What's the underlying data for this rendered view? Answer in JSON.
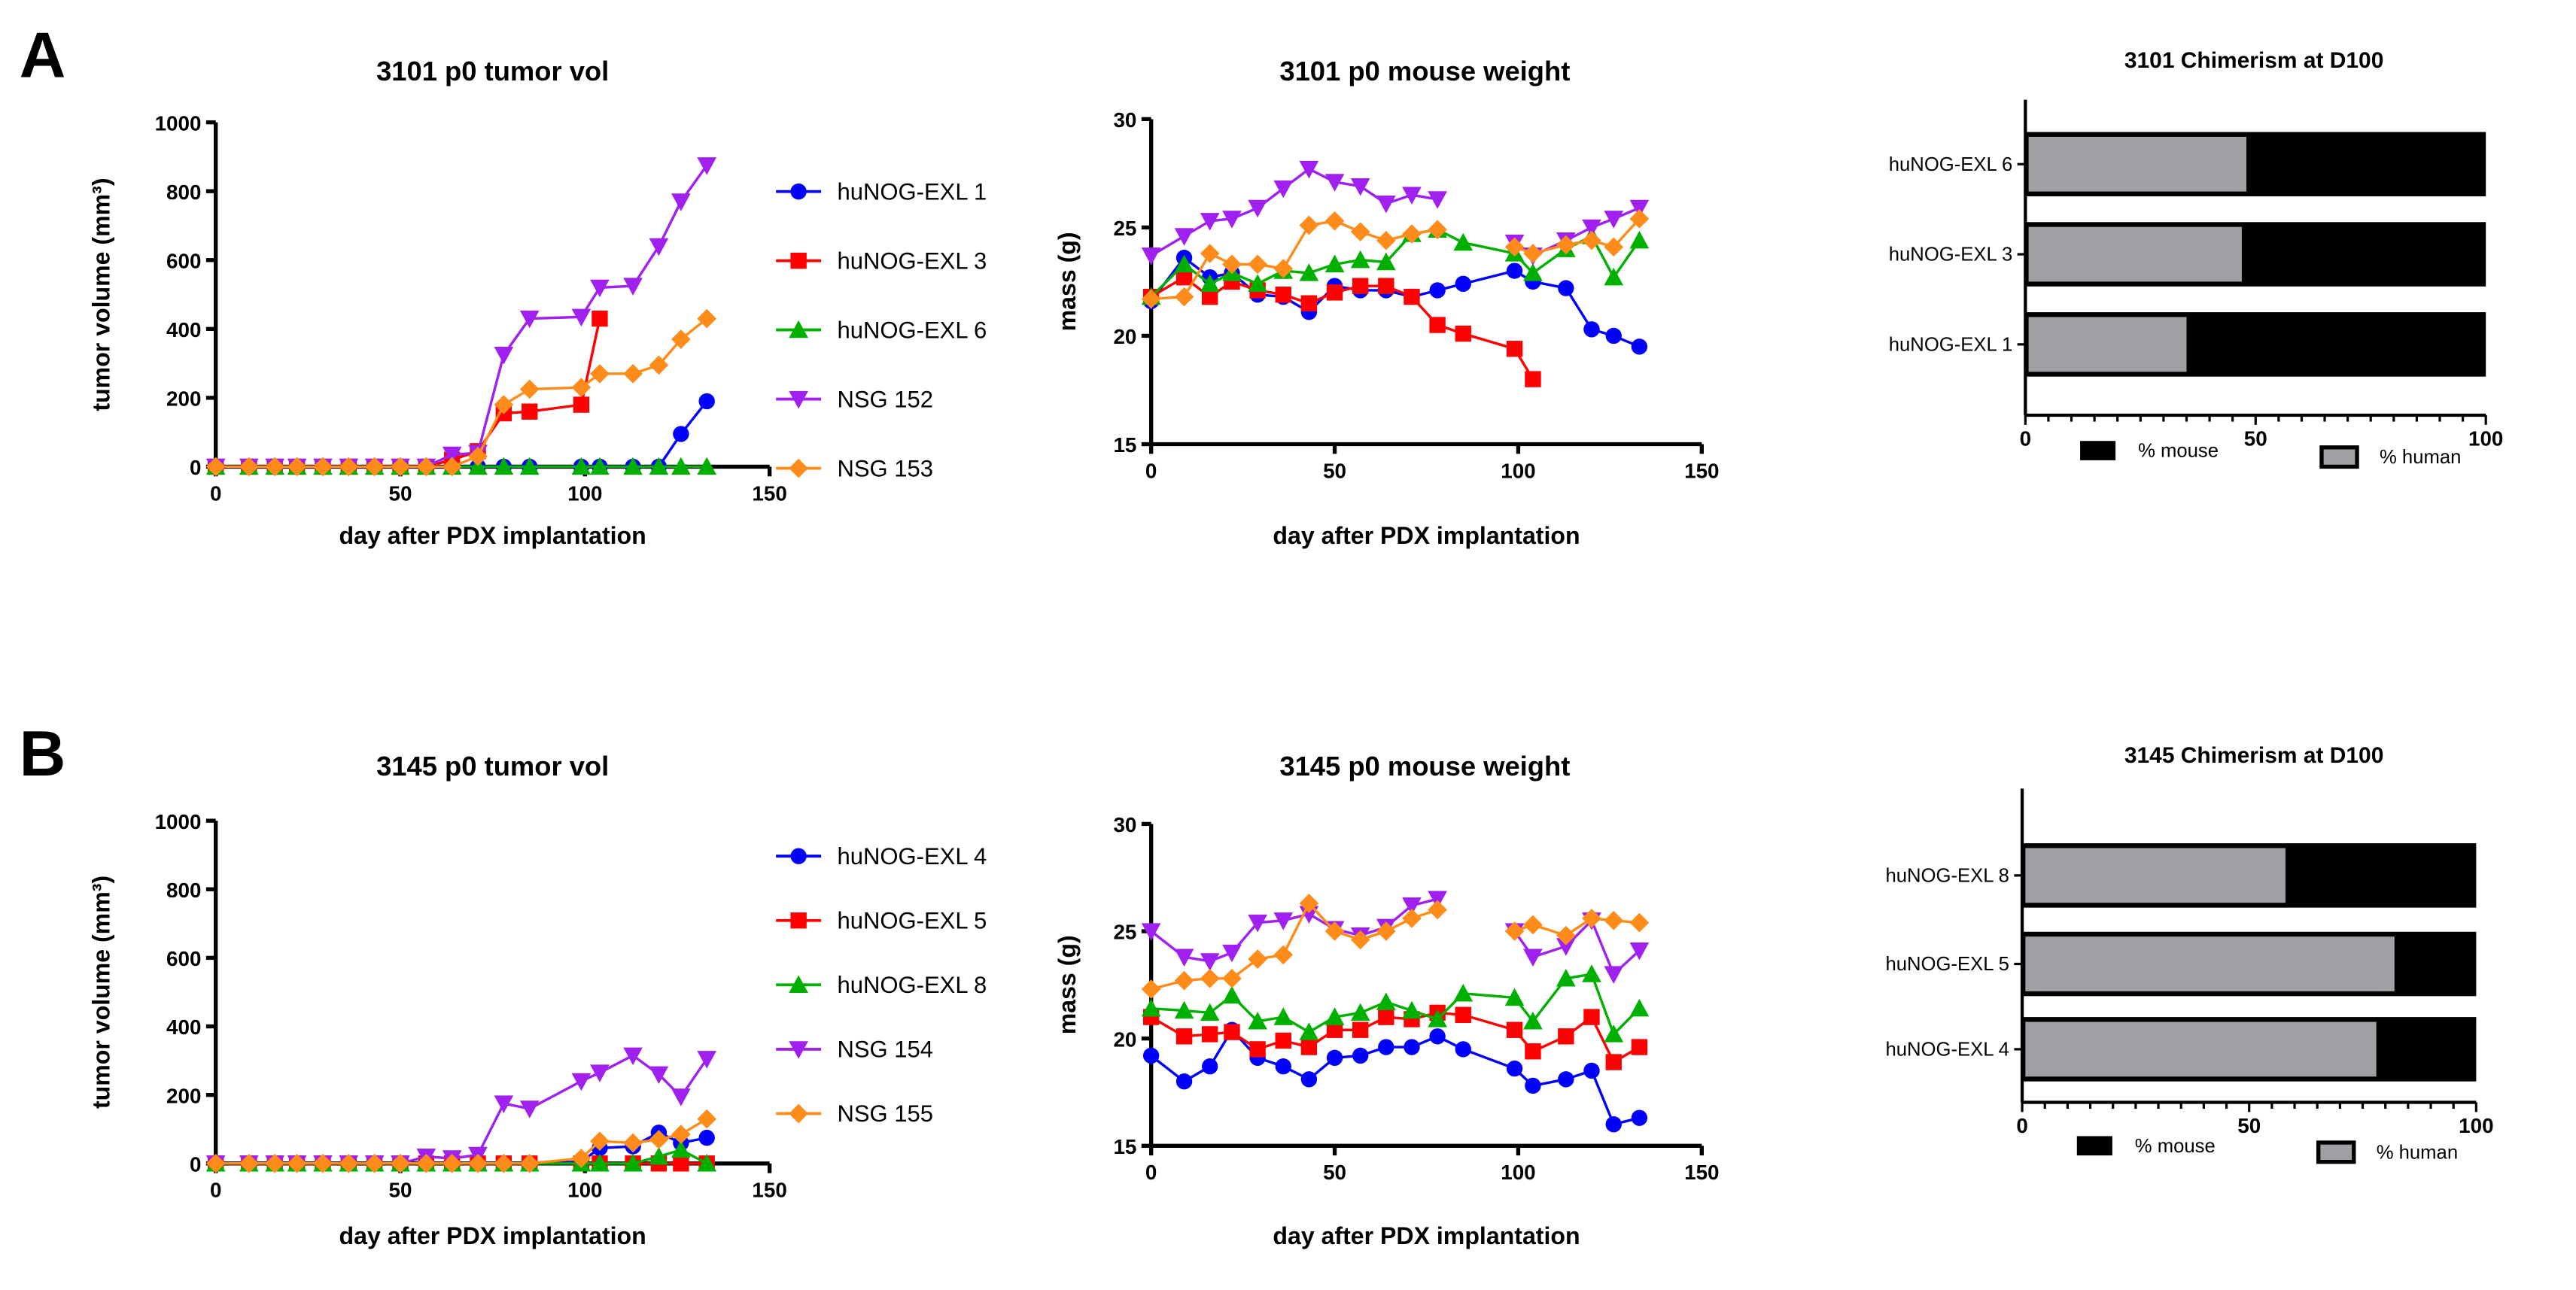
{
  "panels": [
    "A",
    "B"
  ],
  "chart_data": [
    {
      "type": "line",
      "title": "3101 p0 tumor vol",
      "xlabel": "day after PDX implantation",
      "ylabel": "tumor volume (mm³)",
      "xlim": [
        0,
        150
      ],
      "ylim": [
        0,
        1000
      ],
      "xticks": [
        "0",
        "50",
        "100",
        "150"
      ],
      "yticks": [
        "0",
        "200",
        "400",
        "600",
        "800",
        "1000"
      ],
      "legend": "right",
      "x": [
        0,
        9,
        16,
        22,
        29,
        36,
        43,
        50,
        57,
        64,
        71,
        78,
        85,
        99,
        104,
        113,
        120,
        126,
        133
      ],
      "series": [
        {
          "name": "huNOG-EXL 1",
          "color": "#0000ff",
          "marker": "circle",
          "values": [
            0,
            0,
            0,
            0,
            0,
            0,
            0,
            0,
            0,
            0,
            0,
            0,
            0,
            0,
            0,
            0,
            0,
            95,
            190
          ]
        },
        {
          "name": "huNOG-EXL 3",
          "color": "#ff0000",
          "marker": "square",
          "values": [
            0,
            0,
            0,
            0,
            0,
            0,
            0,
            0,
            0,
            20,
            45,
            155,
            160,
            180,
            430,
            null,
            null,
            null,
            null
          ]
        },
        {
          "name": "huNOG-EXL 6",
          "color": "#00b000",
          "marker": "triangle-up",
          "values": [
            0,
            0,
            0,
            0,
            0,
            0,
            0,
            0,
            0,
            0,
            0,
            0,
            0,
            0,
            0,
            0,
            0,
            0,
            0
          ]
        },
        {
          "name": "NSG 152",
          "color": "#a020f0",
          "marker": "triangle-down",
          "values": [
            0,
            0,
            0,
            0,
            0,
            0,
            0,
            0,
            0,
            35,
            40,
            325,
            430,
            435,
            520,
            525,
            640,
            770,
            875
          ]
        },
        {
          "name": "NSG 153",
          "color": "#ff8c1a",
          "marker": "diamond",
          "values": [
            0,
            0,
            0,
            0,
            0,
            0,
            0,
            0,
            0,
            0,
            30,
            180,
            225,
            230,
            270,
            270,
            295,
            370,
            430
          ]
        }
      ]
    },
    {
      "type": "line",
      "title": "3101 p0 mouse weight",
      "xlabel": "day after PDX implantation",
      "ylabel": "mass  (g)",
      "xlim": [
        0,
        150
      ],
      "ylim": [
        15,
        30
      ],
      "xticks": [
        "0",
        "50",
        "100",
        "150"
      ],
      "yticks": [
        "15",
        "20",
        "25",
        "30"
      ],
      "x": [
        0,
        9,
        16,
        22,
        29,
        36,
        43,
        50,
        57,
        64,
        71,
        78,
        85,
        99,
        104,
        113,
        120,
        126,
        133
      ],
      "series": [
        {
          "color": "#0000ff",
          "marker": "circle",
          "values": [
            21.6,
            23.6,
            22.7,
            22.9,
            21.9,
            21.8,
            21.1,
            22.3,
            22.1,
            22.1,
            21.8,
            22.1,
            22.4,
            23.0,
            22.5,
            22.2,
            20.3,
            20.0,
            19.5
          ]
        },
        {
          "color": "#ff0000",
          "marker": "square",
          "values": [
            21.8,
            22.7,
            21.8,
            22.5,
            22.1,
            21.9,
            21.5,
            22.0,
            22.3,
            22.3,
            21.8,
            20.5,
            20.1,
            19.4,
            18.0,
            null,
            null,
            null,
            null
          ]
        },
        {
          "color": "#00b000",
          "marker": "triangle-up",
          "values": [
            21.8,
            23.3,
            22.4,
            22.9,
            22.4,
            23.0,
            22.9,
            23.3,
            23.5,
            23.4,
            24.7,
            24.9,
            24.3,
            23.8,
            22.9,
            24.0,
            24.6,
            22.7,
            24.4
          ]
        },
        {
          "color": "#a020f0",
          "marker": "triangle-down",
          "values": [
            23.7,
            24.6,
            25.3,
            25.4,
            25.9,
            26.8,
            27.7,
            27.1,
            26.9,
            26.1,
            26.5,
            26.3,
            null,
            24.3,
            23.7,
            24.4,
            25.0,
            25.4,
            25.9
          ]
        },
        {
          "color": "#ff8c1a",
          "marker": "diamond",
          "values": [
            21.7,
            21.8,
            23.8,
            23.3,
            23.3,
            23.1,
            25.1,
            25.3,
            24.8,
            24.4,
            24.7,
            24.9,
            null,
            24.1,
            23.8,
            24.2,
            24.4,
            24.1,
            25.4
          ]
        }
      ]
    },
    {
      "type": "bar",
      "orientation": "horizontal-stacked",
      "title": "3101 Chimerism at D100",
      "categories": [
        "huNOG-EXL 6",
        "huNOG-EXL 3",
        "huNOG-EXL 1"
      ],
      "xlim": [
        0,
        100
      ],
      "xticks": [
        "0",
        "50",
        "100"
      ],
      "legend": "bottom",
      "series": [
        {
          "name": "% human",
          "color": "#a0a0a4",
          "values": [
            48,
            47,
            35
          ]
        },
        {
          "name": "% mouse",
          "color": "#000000",
          "values": [
            52,
            53,
            65
          ]
        }
      ]
    },
    {
      "type": "line",
      "title": "3145 p0 tumor vol",
      "xlabel": "day after PDX implantation",
      "ylabel": "tumor volume (mm³)",
      "xlim": [
        0,
        150
      ],
      "ylim": [
        0,
        1000
      ],
      "xticks": [
        "0",
        "50",
        "100",
        "150"
      ],
      "yticks": [
        "0",
        "200",
        "400",
        "600",
        "800",
        "1000"
      ],
      "legend": "right",
      "x": [
        0,
        9,
        16,
        22,
        29,
        36,
        43,
        50,
        57,
        64,
        71,
        78,
        85,
        99,
        104,
        113,
        120,
        126,
        133
      ],
      "series": [
        {
          "name": "huNOG-EXL 4",
          "color": "#0000ff",
          "marker": "circle",
          "values": [
            0,
            0,
            0,
            0,
            0,
            0,
            0,
            0,
            0,
            0,
            0,
            0,
            0,
            5,
            45,
            50,
            90,
            60,
            75
          ]
        },
        {
          "name": "huNOG-EXL 5",
          "color": "#ff0000",
          "marker": "square",
          "values": [
            0,
            0,
            0,
            0,
            0,
            0,
            0,
            0,
            0,
            0,
            0,
            0,
            0,
            0,
            0,
            0,
            0,
            0,
            0
          ]
        },
        {
          "name": "huNOG-EXL 8",
          "color": "#00b000",
          "marker": "triangle-up",
          "values": [
            0,
            0,
            0,
            0,
            0,
            0,
            0,
            0,
            0,
            0,
            0,
            0,
            0,
            0,
            0,
            0,
            20,
            40,
            0
          ]
        },
        {
          "name": "NSG 154",
          "color": "#a020f0",
          "marker": "triangle-down",
          "values": [
            0,
            0,
            0,
            0,
            0,
            0,
            0,
            0,
            20,
            15,
            25,
            175,
            160,
            240,
            265,
            315,
            260,
            195,
            305
          ]
        },
        {
          "name": "NSG 155",
          "color": "#ff8c1a",
          "marker": "diamond",
          "values": [
            0,
            0,
            0,
            0,
            0,
            0,
            0,
            0,
            0,
            0,
            0,
            0,
            0,
            15,
            65,
            60,
            70,
            85,
            130
          ]
        }
      ]
    },
    {
      "type": "line",
      "title": "3145 p0 mouse weight",
      "xlabel": "day after PDX implantation",
      "ylabel": "mass  (g)",
      "xlim": [
        0,
        150
      ],
      "ylim": [
        15,
        30
      ],
      "xticks": [
        "0",
        "50",
        "100",
        "150"
      ],
      "yticks": [
        "15",
        "20",
        "25",
        "30"
      ],
      "x": [
        0,
        9,
        16,
        22,
        29,
        36,
        43,
        50,
        57,
        64,
        71,
        78,
        85,
        99,
        104,
        113,
        120,
        126,
        133
      ],
      "series": [
        {
          "color": "#0000ff",
          "marker": "circle",
          "values": [
            19.2,
            18.0,
            18.7,
            20.4,
            19.1,
            18.7,
            18.1,
            19.1,
            19.2,
            19.6,
            19.6,
            20.1,
            19.5,
            18.6,
            17.8,
            18.1,
            18.5,
            16.0,
            16.3
          ]
        },
        {
          "color": "#ff0000",
          "marker": "square",
          "values": [
            21.0,
            20.1,
            20.2,
            20.3,
            19.5,
            19.9,
            19.6,
            20.4,
            20.4,
            21.0,
            20.9,
            21.2,
            21.1,
            20.4,
            19.4,
            20.1,
            21.0,
            18.9,
            19.6
          ]
        },
        {
          "color": "#00b000",
          "marker": "triangle-up",
          "values": [
            21.4,
            21.3,
            21.2,
            22.0,
            20.8,
            21.0,
            20.3,
            21.0,
            21.2,
            21.7,
            21.3,
            20.9,
            22.1,
            21.9,
            20.8,
            22.8,
            23.0,
            20.2,
            21.4
          ]
        },
        {
          "color": "#a020f0",
          "marker": "triangle-down",
          "values": [
            25.0,
            23.8,
            23.6,
            24.0,
            25.4,
            25.5,
            25.8,
            25.1,
            24.8,
            25.2,
            26.2,
            26.5,
            null,
            25.0,
            23.8,
            24.3,
            25.5,
            23.0,
            24.1
          ]
        },
        {
          "color": "#ff8c1a",
          "marker": "diamond",
          "values": [
            22.3,
            22.7,
            22.8,
            22.8,
            23.7,
            23.9,
            26.3,
            25.0,
            24.6,
            25.0,
            25.6,
            26.0,
            null,
            25.0,
            25.3,
            24.8,
            25.6,
            25.5,
            25.4
          ]
        }
      ]
    },
    {
      "type": "bar",
      "orientation": "horizontal-stacked",
      "title": "3145 Chimerism at D100",
      "categories": [
        "huNOG-EXL 8",
        "huNOG-EXL 5",
        "huNOG-EXL 4"
      ],
      "xlim": [
        0,
        100
      ],
      "xticks": [
        "0",
        "50",
        "100"
      ],
      "legend": "bottom",
      "series": [
        {
          "name": "% human",
          "color": "#a0a0a4",
          "values": [
            58,
            82,
            78
          ]
        },
        {
          "name": "% mouse",
          "color": "#000000",
          "values": [
            42,
            18,
            22
          ]
        }
      ]
    }
  ]
}
